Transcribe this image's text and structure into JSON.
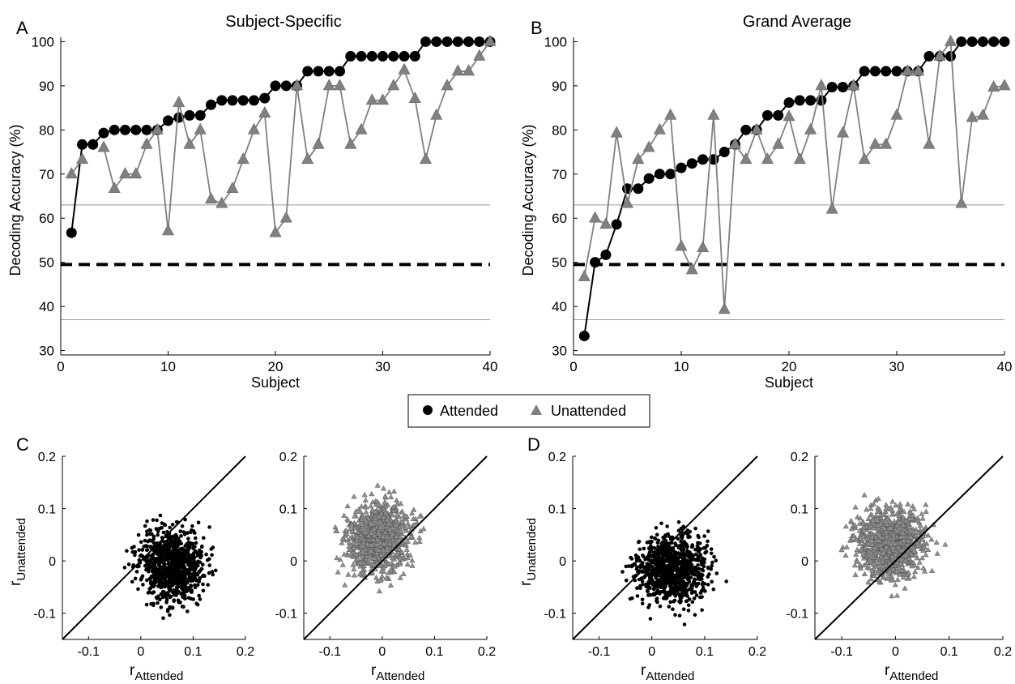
{
  "figure": {
    "panel_letters": [
      "A",
      "B",
      "C",
      "D"
    ]
  },
  "legend": {
    "attended_label": "Attended",
    "unattended_label": "Unattended"
  },
  "colors": {
    "attended": "#000000",
    "unattended": "#808080",
    "axis": "#000000",
    "threshold": "#999999"
  },
  "chart_data": [
    {
      "id": "A",
      "type": "line",
      "title": "Subject-Specific",
      "xlabel": "Subject",
      "ylabel": "Decoding Accuracy (%)",
      "xlim": [
        0,
        40
      ],
      "ylim": [
        29,
        101
      ],
      "xticks": [
        0,
        10,
        20,
        30,
        40
      ],
      "yticks": [
        30,
        40,
        50,
        60,
        70,
        80,
        90,
        100
      ],
      "reference_lines": [
        {
          "y": 49.5,
          "style": "dashed-bold"
        },
        {
          "y": 63,
          "style": "thin"
        },
        {
          "y": 37,
          "style": "thin"
        }
      ],
      "x": [
        1,
        2,
        3,
        4,
        5,
        6,
        7,
        8,
        9,
        10,
        11,
        12,
        13,
        14,
        15,
        16,
        17,
        18,
        19,
        20,
        21,
        22,
        23,
        24,
        25,
        26,
        27,
        28,
        29,
        30,
        31,
        32,
        33,
        34,
        35,
        36,
        37,
        38,
        39,
        40
      ],
      "series": [
        {
          "name": "Attended",
          "marker": "circle",
          "values": [
            56.7,
            76.7,
            76.7,
            79.3,
            80,
            80,
            80,
            80,
            80,
            82.1,
            82.8,
            83.3,
            83.3,
            85.7,
            86.7,
            86.7,
            86.7,
            86.7,
            87.2,
            90,
            90,
            90,
            93.3,
            93.3,
            93.3,
            93.3,
            96.7,
            96.7,
            96.7,
            96.7,
            96.7,
            96.7,
            96.7,
            100,
            100,
            100,
            100,
            100,
            100,
            100
          ]
        },
        {
          "name": "Unattended",
          "marker": "triangle",
          "values": [
            70,
            73.3,
            null,
            76,
            66.7,
            70,
            70,
            76.7,
            80,
            57.1,
            86.2,
            76.7,
            80,
            64.3,
            63.3,
            66.7,
            73.3,
            80,
            83.8,
            56.7,
            60,
            90,
            73.3,
            76.7,
            90,
            90,
            76.7,
            80,
            86.7,
            86.7,
            90,
            93.6,
            87.1,
            73.3,
            83.3,
            90,
            93.3,
            93.3,
            96.7,
            100
          ]
        }
      ]
    },
    {
      "id": "B",
      "type": "line",
      "title": "Grand Average",
      "xlabel": "Subject",
      "ylabel": "Decoding Accuracy (%)",
      "xlim": [
        0,
        40
      ],
      "ylim": [
        29,
        101
      ],
      "xticks": [
        0,
        10,
        20,
        30,
        40
      ],
      "yticks": [
        30,
        40,
        50,
        60,
        70,
        80,
        90,
        100
      ],
      "reference_lines": [
        {
          "y": 49.5,
          "style": "dashed-bold"
        },
        {
          "y": 63,
          "style": "thin"
        },
        {
          "y": 37,
          "style": "thin"
        }
      ],
      "x": [
        1,
        2,
        3,
        4,
        5,
        6,
        7,
        8,
        9,
        10,
        11,
        12,
        13,
        14,
        15,
        16,
        17,
        18,
        19,
        20,
        21,
        22,
        23,
        24,
        25,
        26,
        27,
        28,
        29,
        30,
        31,
        32,
        33,
        34,
        35,
        36,
        37,
        38,
        39,
        40
      ],
      "series": [
        {
          "name": "Attended",
          "marker": "circle",
          "values": [
            33.3,
            50,
            51.7,
            58.6,
            66.7,
            66.7,
            69,
            70,
            70,
            71.4,
            72.4,
            73.3,
            73.3,
            75,
            76.7,
            80,
            80,
            83.3,
            83.3,
            86.2,
            86.7,
            86.7,
            86.7,
            89.7,
            89.7,
            90,
            93.3,
            93.3,
            93.3,
            93.3,
            93.3,
            93.3,
            96.7,
            96.7,
            96.7,
            100,
            100,
            100,
            100,
            100
          ]
        },
        {
          "name": "Unattended",
          "marker": "triangle",
          "values": [
            46.7,
            60,
            58.6,
            79.3,
            63.3,
            73.3,
            76,
            80,
            83.3,
            53.6,
            48.3,
            53.3,
            83.3,
            39.3,
            76.7,
            73.3,
            80,
            73.3,
            76.7,
            83,
            73.3,
            80,
            90,
            62,
            79.3,
            90,
            73.3,
            76.7,
            76.7,
            83.3,
            93.3,
            93.3,
            76.7,
            96.7,
            100,
            63.3,
            82.8,
            83.3,
            89.7,
            90
          ]
        }
      ]
    },
    {
      "id": "C-attended",
      "type": "scatter",
      "xlabel": "r",
      "xlabel_sub": "Attended",
      "ylabel": "r",
      "ylabel_sub": "Unattended",
      "xlim": [
        -0.15,
        0.2
      ],
      "ylim": [
        -0.15,
        0.2
      ],
      "xticks": [
        -0.1,
        0,
        0.1,
        0.2
      ],
      "yticks": [
        -0.1,
        0,
        0.1,
        0.2
      ],
      "xticklabels": [
        "-0.1",
        "0",
        "0.1",
        "0.2"
      ],
      "yticklabels": [
        "-0.1",
        "0",
        "0.1",
        "0.2"
      ],
      "diagonal": true,
      "series": [
        {
          "name": "Attended",
          "marker": "dot",
          "n": 900,
          "mean": [
            0.06,
            -0.01
          ],
          "sd": [
            0.03,
            0.032
          ],
          "seed": 11
        }
      ]
    },
    {
      "id": "C-unattended",
      "type": "scatter",
      "xlabel": "r",
      "xlabel_sub": "Attended",
      "ylabel": "",
      "xlim": [
        -0.15,
        0.2
      ],
      "ylim": [
        -0.15,
        0.2
      ],
      "xticks": [
        -0.1,
        0,
        0.1,
        0.2
      ],
      "yticks": [
        -0.1,
        0,
        0.1,
        0.2
      ],
      "xticklabels": [
        "-0.1",
        "0",
        "0.1",
        "0.2"
      ],
      "yticklabels": [
        "-0.1",
        "0",
        "0.1",
        "0.2"
      ],
      "diagonal": true,
      "series": [
        {
          "name": "Unattended",
          "marker": "triangle",
          "n": 900,
          "mean": [
            -0.005,
            0.045
          ],
          "sd": [
            0.03,
            0.033
          ],
          "seed": 23
        }
      ]
    },
    {
      "id": "D-attended",
      "type": "scatter",
      "xlabel": "r",
      "xlabel_sub": "Attended",
      "ylabel": "r",
      "ylabel_sub": "Unattended",
      "xlim": [
        -0.15,
        0.2
      ],
      "ylim": [
        -0.15,
        0.2
      ],
      "xticks": [
        -0.1,
        0,
        0.1,
        0.2
      ],
      "yticks": [
        -0.1,
        0,
        0.1,
        0.2
      ],
      "xticklabels": [
        "-0.1",
        "0",
        "0.1",
        "0.2"
      ],
      "yticklabels": [
        "-0.1",
        "0",
        "0.1",
        "0.2"
      ],
      "diagonal": true,
      "series": [
        {
          "name": "Attended",
          "marker": "dot",
          "n": 900,
          "mean": [
            0.04,
            -0.015
          ],
          "sd": [
            0.032,
            0.033
          ],
          "seed": 37
        }
      ]
    },
    {
      "id": "D-unattended",
      "type": "scatter",
      "xlabel": "r",
      "xlabel_sub": "Attended",
      "ylabel": "",
      "xlim": [
        -0.15,
        0.2
      ],
      "ylim": [
        -0.15,
        0.2
      ],
      "xticks": [
        -0.1,
        0,
        0.1,
        0.2
      ],
      "yticks": [
        -0.1,
        0,
        0.1,
        0.2
      ],
      "xticklabels": [
        "-0.1",
        "0",
        "0.1",
        "0.2"
      ],
      "yticklabels": [
        "-0.1",
        "0",
        "0.1",
        "0.2"
      ],
      "diagonal": true,
      "series": [
        {
          "name": "Unattended",
          "marker": "triangle",
          "n": 900,
          "mean": [
            -0.01,
            0.035
          ],
          "sd": [
            0.032,
            0.032
          ],
          "seed": 53
        }
      ]
    }
  ]
}
